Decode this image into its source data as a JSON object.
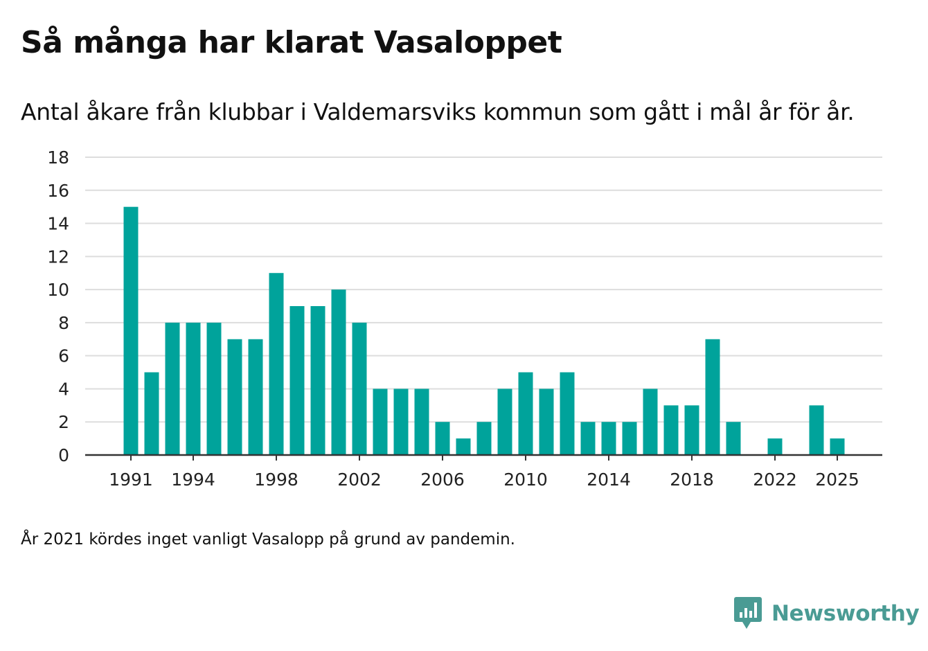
{
  "title": "Så många har klarat Vasaloppet",
  "subtitle": "Antal åkare från klubbar i Valdemarsviks kommun som gått i mål år för år.",
  "note": "År 2021 kördes inget vanligt Vasalopp på grund av pandemin.",
  "brand": {
    "name": "Newsworthy",
    "icon": "newsworthy-logo-icon"
  },
  "colors": {
    "bar": "#00a39b",
    "grid": "#dddddd",
    "axis": "#333333",
    "brand": "#4a9b94"
  },
  "chart_data": {
    "type": "bar",
    "title": "Så många har klarat Vasaloppet",
    "xlabel": "",
    "ylabel": "",
    "ylim": [
      0,
      18
    ],
    "yticks": [
      0,
      2,
      4,
      6,
      8,
      10,
      12,
      14,
      16,
      18
    ],
    "xtick_labels": [
      "1991",
      "1994",
      "1998",
      "2002",
      "2006",
      "2010",
      "2014",
      "2018",
      "2022",
      "2025"
    ],
    "categories": [
      1991,
      1992,
      1993,
      1994,
      1995,
      1996,
      1997,
      1998,
      1999,
      2000,
      2001,
      2002,
      2003,
      2004,
      2005,
      2006,
      2007,
      2008,
      2009,
      2010,
      2011,
      2012,
      2013,
      2014,
      2015,
      2016,
      2017,
      2018,
      2019,
      2020,
      2021,
      2022,
      2023,
      2024,
      2025
    ],
    "values": [
      15,
      5,
      8,
      8,
      8,
      7,
      7,
      11,
      9,
      9,
      10,
      8,
      4,
      4,
      4,
      2,
      1,
      2,
      4,
      5,
      4,
      5,
      2,
      2,
      2,
      4,
      3,
      3,
      7,
      2,
      0,
      1,
      0,
      3,
      1
    ],
    "grid": true,
    "legend": "none"
  }
}
